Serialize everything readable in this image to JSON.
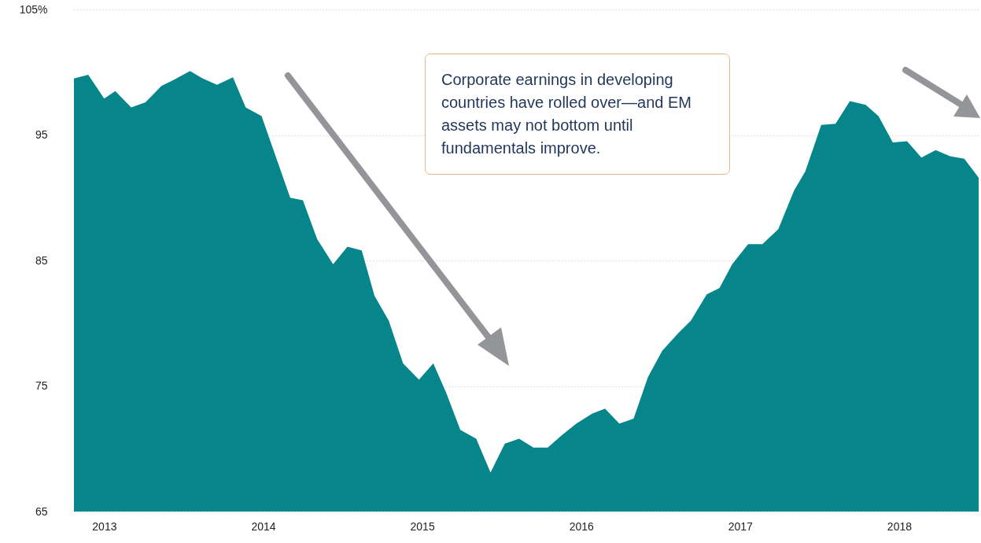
{
  "chart_data": {
    "type": "area",
    "x": [
      2012.81,
      2012.9,
      2013.0,
      2013.07,
      2013.17,
      2013.26,
      2013.36,
      2013.44,
      2013.54,
      2013.62,
      2013.71,
      2013.81,
      2013.89,
      2013.99,
      2014.17,
      2014.25,
      2014.34,
      2014.44,
      2014.53,
      2014.62,
      2014.7,
      2014.79,
      2014.88,
      2014.98,
      2015.07,
      2015.15,
      2015.24,
      2015.34,
      2015.43,
      2015.52,
      2015.61,
      2015.7,
      2015.79,
      2015.88,
      2015.97,
      2016.07,
      2016.15,
      2016.24,
      2016.33,
      2016.42,
      2016.51,
      2016.61,
      2016.69,
      2016.79,
      2016.87,
      2016.95,
      2017.05,
      2017.14,
      2017.24,
      2017.34,
      2017.41,
      2017.51,
      2017.6,
      2017.69,
      2017.79,
      2017.87,
      2017.96,
      2018.05,
      2018.14,
      2018.23,
      2018.32,
      2018.41,
      2018.5
    ],
    "series": [
      {
        "color": "#06868a",
        "values": [
          99.5,
          99.8,
          97.9,
          98.5,
          97.2,
          97.6,
          98.9,
          99.4,
          100.1,
          99.5,
          99.0,
          99.6,
          97.2,
          96.5,
          90.0,
          89.8,
          86.7,
          84.7,
          86.1,
          85.8,
          82.2,
          80.2,
          76.8,
          75.5,
          76.8,
          74.5,
          71.5,
          70.8,
          68.1,
          70.4,
          70.8,
          70.1,
          70.1,
          71.1,
          72.0,
          72.8,
          73.2,
          72.0,
          72.4,
          75.7,
          77.8,
          79.2,
          80.2,
          82.3,
          82.8,
          84.7,
          86.3,
          86.3,
          87.5,
          90.6,
          92.1,
          95.8,
          95.9,
          97.7,
          97.4,
          96.5,
          94.4,
          94.5,
          93.2,
          93.8,
          93.3,
          93.1,
          91.6
        ]
      }
    ],
    "xlim": [
      2012.81,
      2018.5
    ],
    "xticks": [
      2013,
      2014,
      2015,
      2016,
      2017,
      2018
    ],
    "ylim": [
      65,
      105
    ],
    "yticks": [
      65,
      75,
      85,
      95,
      {
        "value": 105,
        "label": "105%"
      }
    ],
    "grid": "y",
    "annotations": [
      "Corporate earnings in developing countries have rolled over—and EM assets may not bottom until fundamentals improve."
    ]
  }
}
